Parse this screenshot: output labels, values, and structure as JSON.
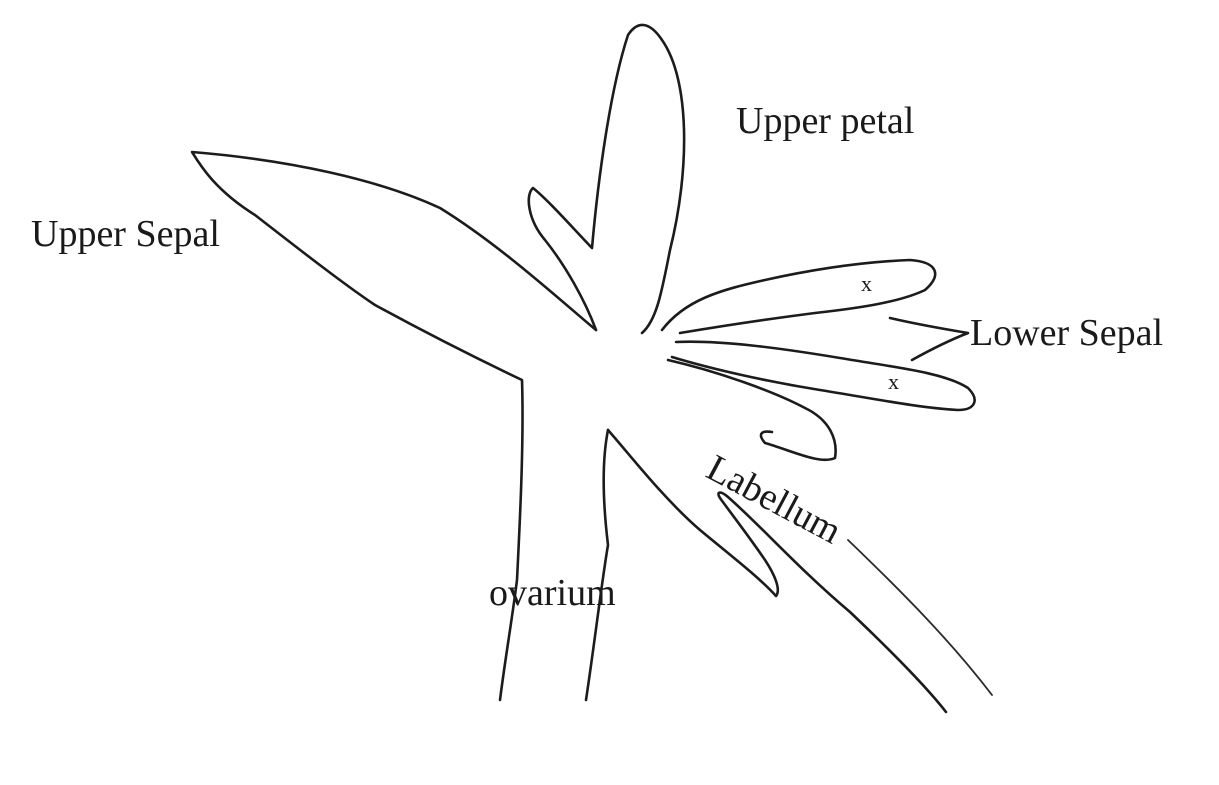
{
  "labels": {
    "upper_petal": "Upper petal",
    "upper_sepal": "Upper Sepal",
    "lower_sepal": "Lower Sepal",
    "labellum": "Labellum",
    "ovarium": "ovarium"
  },
  "marks": {
    "upper_lower_sepal": "x",
    "lower_lower_sepal": "x"
  },
  "colors": {
    "ink": "#1c1c1c",
    "background": "#ffffff"
  }
}
